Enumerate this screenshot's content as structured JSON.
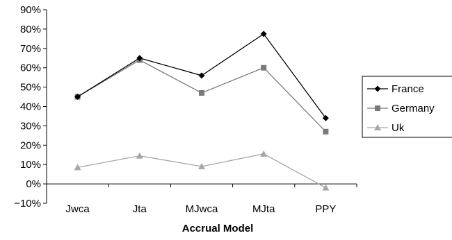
{
  "chart_data": {
    "type": "line",
    "xlabel": "Accrual Model",
    "ylabel": "",
    "categories": [
      "Jwca",
      "Jta",
      "MJwca",
      "MJta",
      "PPY"
    ],
    "ylim": [
      -0.1,
      0.9
    ],
    "y_ticks": [
      -0.1,
      0,
      0.1,
      0.2,
      0.3,
      0.4,
      0.5,
      0.6,
      0.7,
      0.8,
      0.9
    ],
    "y_tick_labels": [
      "−10%",
      "0%",
      "10%",
      "20%",
      "30%",
      "40%",
      "50%",
      "60%",
      "70%",
      "80%",
      "90%"
    ],
    "grid": false,
    "legend_position": "right",
    "series": [
      {
        "name": "France",
        "values": [
          0.45,
          0.65,
          0.56,
          0.775,
          0.34
        ],
        "color": "#000000",
        "marker": "diamond"
      },
      {
        "name": "Germany",
        "values": [
          0.45,
          0.64,
          0.47,
          0.6,
          0.27
        ],
        "color": "#7a7a7a",
        "marker": "square"
      },
      {
        "name": "Uk",
        "values": [
          0.085,
          0.145,
          0.09,
          0.155,
          -0.02
        ],
        "color": "#a6a6a6",
        "marker": "triangle"
      }
    ]
  }
}
